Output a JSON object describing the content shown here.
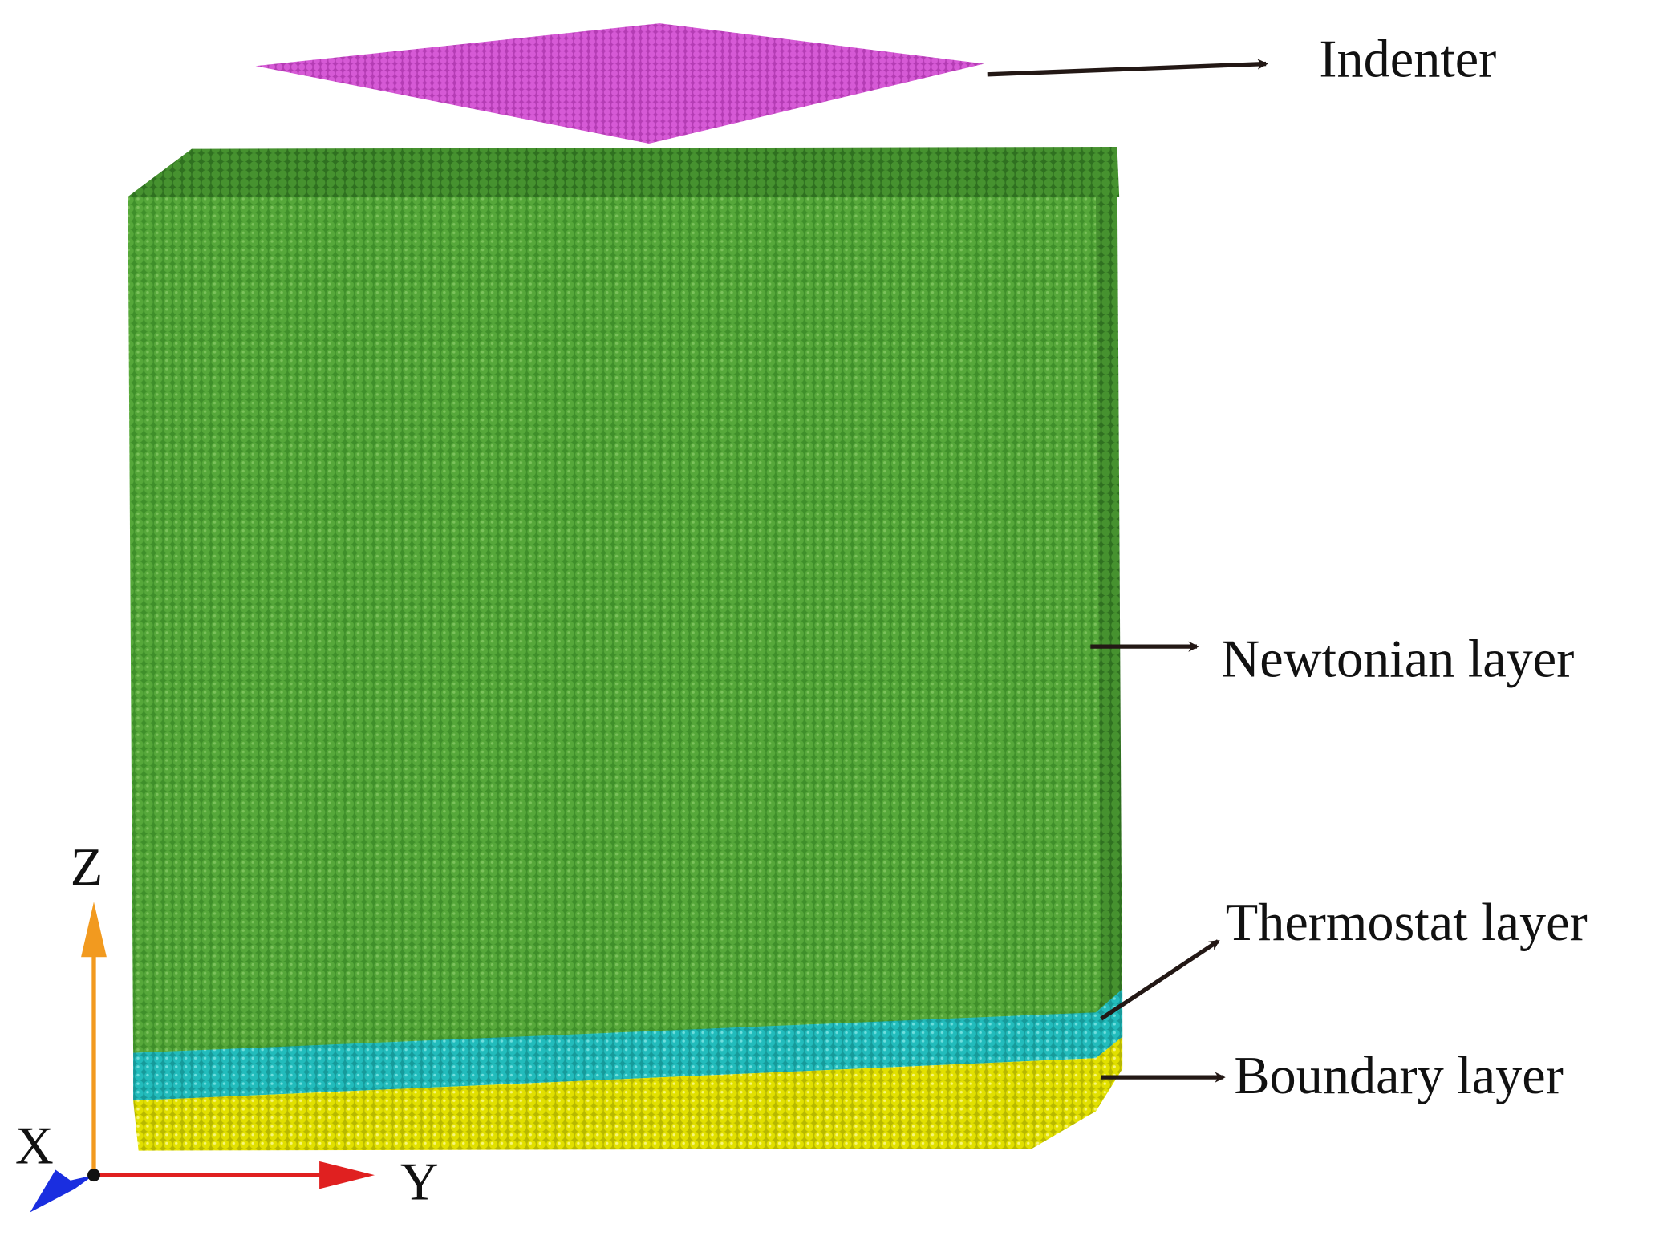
{
  "labels": {
    "indenter": "Indenter",
    "newtonian": "Newtonian layer",
    "thermostat": "Thermostat layer",
    "boundary": "Boundary layer"
  },
  "axes": {
    "z": "Z",
    "x": "X",
    "y": "Y"
  }
}
